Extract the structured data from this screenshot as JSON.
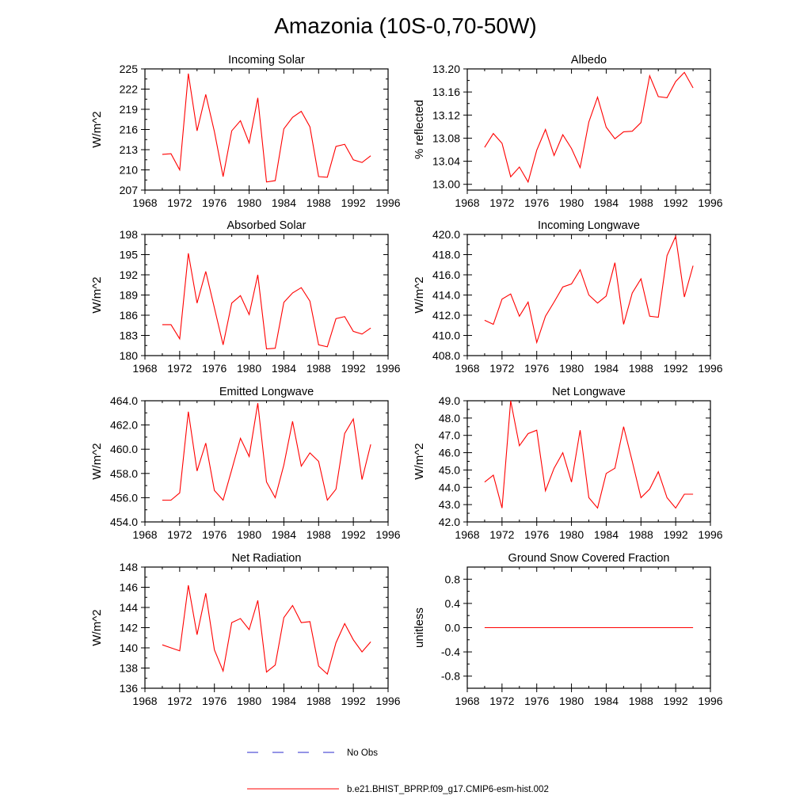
{
  "title": "Amazonia (10S-0,70-50W)",
  "colors": {
    "series": "#ff0000",
    "obs": "#2b2bcc",
    "axis": "#000000"
  },
  "legend": {
    "placement": "bottom-center",
    "entries": [
      {
        "label": "No Obs",
        "style": "dashed",
        "color": "#2b2bcc"
      },
      {
        "label": "b.e21.BHIST_BPRP.f09_g17.CMIP6-esm-hist.002",
        "style": "solid",
        "color": "#ff0000"
      }
    ]
  },
  "chart_data": [
    {
      "type": "line",
      "title": "Incoming Solar",
      "ylabel": "W/m^2",
      "xlim": [
        1968,
        1996
      ],
      "ylim": [
        207,
        225
      ],
      "xticks": [
        "1968",
        "1972",
        "1976",
        "1980",
        "1984",
        "1988",
        "1992",
        "1996"
      ],
      "yticks": [
        "207",
        "210",
        "213",
        "216",
        "219",
        "222",
        "225"
      ],
      "x": [
        1970,
        1971,
        1972,
        1973,
        1974,
        1975,
        1976,
        1977,
        1978,
        1979,
        1980,
        1981,
        1982,
        1983,
        1984,
        1985,
        1986,
        1987,
        1988,
        1989,
        1990,
        1991,
        1992,
        1993,
        1994
      ],
      "values": [
        212.3,
        212.4,
        210.0,
        224.3,
        215.8,
        221.2,
        215.7,
        209.0,
        215.8,
        217.3,
        214.0,
        220.7,
        208.2,
        208.4,
        216.1,
        217.8,
        218.7,
        216.4,
        209.0,
        208.9,
        213.5,
        213.8,
        211.5,
        211.1,
        212.1
      ]
    },
    {
      "type": "line",
      "title": "Albedo",
      "ylabel": "% reflected",
      "xlim": [
        1968,
        1996
      ],
      "ylim": [
        12.99,
        13.2
      ],
      "xticks": [
        "1968",
        "1972",
        "1976",
        "1980",
        "1984",
        "1988",
        "1992",
        "1996"
      ],
      "yticks": [
        "13.00",
        "13.04",
        "13.08",
        "13.12",
        "13.16",
        "13.20"
      ],
      "x": [
        1970,
        1971,
        1972,
        1973,
        1974,
        1975,
        1976,
        1977,
        1978,
        1979,
        1980,
        1981,
        1982,
        1983,
        1984,
        1985,
        1986,
        1987,
        1988,
        1989,
        1990,
        1991,
        1992,
        1993,
        1994
      ],
      "values": [
        13.064,
        13.088,
        13.071,
        13.013,
        13.03,
        13.004,
        13.059,
        13.095,
        13.05,
        13.086,
        13.062,
        13.029,
        13.108,
        13.151,
        13.099,
        13.079,
        13.091,
        13.092,
        13.107,
        13.188,
        13.152,
        13.15,
        13.178,
        13.194,
        13.167
      ]
    },
    {
      "type": "line",
      "title": "Absorbed Solar",
      "ylabel": "W/m^2",
      "xlim": [
        1968,
        1996
      ],
      "ylim": [
        180,
        198
      ],
      "xticks": [
        "1968",
        "1972",
        "1976",
        "1980",
        "1984",
        "1988",
        "1992",
        "1996"
      ],
      "yticks": [
        "180",
        "183",
        "186",
        "189",
        "192",
        "195",
        "198"
      ],
      "x": [
        1970,
        1971,
        1972,
        1973,
        1974,
        1975,
        1976,
        1977,
        1978,
        1979,
        1980,
        1981,
        1982,
        1983,
        1984,
        1985,
        1986,
        1987,
        1988,
        1989,
        1990,
        1991,
        1992,
        1993,
        1994
      ],
      "values": [
        184.6,
        184.6,
        182.5,
        195.2,
        187.8,
        192.5,
        187.1,
        181.6,
        187.8,
        188.9,
        186.1,
        192.0,
        181.0,
        181.1,
        187.9,
        189.3,
        190.1,
        188.1,
        181.6,
        181.3,
        185.5,
        185.8,
        183.6,
        183.2,
        184.1
      ]
    },
    {
      "type": "line",
      "title": "Incoming Longwave",
      "ylabel": "W/m^2",
      "xlim": [
        1968,
        1996
      ],
      "ylim": [
        408,
        420
      ],
      "xticks": [
        "1968",
        "1972",
        "1976",
        "1980",
        "1984",
        "1988",
        "1992",
        "1996"
      ],
      "yticks": [
        "408.0",
        "410.0",
        "412.0",
        "414.0",
        "416.0",
        "418.0",
        "420.0"
      ],
      "x": [
        1970,
        1971,
        1972,
        1973,
        1974,
        1975,
        1976,
        1977,
        1978,
        1979,
        1980,
        1981,
        1982,
        1983,
        1984,
        1985,
        1986,
        1987,
        1988,
        1989,
        1990,
        1991,
        1992,
        1993,
        1994
      ],
      "values": [
        411.5,
        411.1,
        413.6,
        414.1,
        411.9,
        413.3,
        409.3,
        411.9,
        413.3,
        414.8,
        415.1,
        416.5,
        414.0,
        413.2,
        413.9,
        417.2,
        411.1,
        414.2,
        415.6,
        411.9,
        411.8,
        417.9,
        419.8,
        413.8,
        416.9
      ]
    },
    {
      "type": "line",
      "title": "Emitted Longwave",
      "ylabel": "W/m^2",
      "xlim": [
        1968,
        1996
      ],
      "ylim": [
        454,
        464
      ],
      "xticks": [
        "1968",
        "1972",
        "1976",
        "1980",
        "1984",
        "1988",
        "1992",
        "1996"
      ],
      "yticks": [
        "454.0",
        "456.0",
        "458.0",
        "460.0",
        "462.0",
        "464.0"
      ],
      "x": [
        1970,
        1971,
        1972,
        1973,
        1974,
        1975,
        1976,
        1977,
        1978,
        1979,
        1980,
        1981,
        1982,
        1983,
        1984,
        1985,
        1986,
        1987,
        1988,
        1989,
        1990,
        1991,
        1992,
        1993,
        1994
      ],
      "values": [
        455.8,
        455.8,
        456.4,
        463.1,
        458.2,
        460.5,
        456.6,
        455.8,
        458.3,
        460.9,
        459.4,
        463.8,
        457.3,
        456.0,
        458.7,
        462.3,
        458.6,
        459.7,
        459.0,
        455.8,
        456.7,
        461.3,
        462.5,
        457.5,
        460.4
      ]
    },
    {
      "type": "line",
      "title": "Net Longwave",
      "ylabel": "W/m^2",
      "xlim": [
        1968,
        1996
      ],
      "ylim": [
        42,
        49
      ],
      "xticks": [
        "1968",
        "1972",
        "1976",
        "1980",
        "1984",
        "1988",
        "1992",
        "1996"
      ],
      "yticks": [
        "42.0",
        "43.0",
        "44.0",
        "45.0",
        "46.0",
        "47.0",
        "48.0",
        "49.0"
      ],
      "x": [
        1970,
        1971,
        1972,
        1973,
        1974,
        1975,
        1976,
        1977,
        1978,
        1979,
        1980,
        1981,
        1982,
        1983,
        1984,
        1985,
        1986,
        1987,
        1988,
        1989,
        1990,
        1991,
        1992,
        1993,
        1994
      ],
      "values": [
        44.3,
        44.7,
        42.8,
        49.0,
        46.4,
        47.1,
        47.3,
        43.8,
        45.1,
        46.0,
        44.3,
        47.3,
        43.4,
        42.8,
        44.8,
        45.1,
        47.5,
        45.5,
        43.4,
        43.9,
        44.9,
        43.4,
        42.8,
        43.6,
        43.6
      ]
    },
    {
      "type": "line",
      "title": "Net Radiation",
      "ylabel": "W/m^2",
      "xlim": [
        1968,
        1996
      ],
      "ylim": [
        136,
        148
      ],
      "xticks": [
        "1968",
        "1972",
        "1976",
        "1980",
        "1984",
        "1988",
        "1992",
        "1996"
      ],
      "yticks": [
        "136",
        "138",
        "140",
        "142",
        "144",
        "146",
        "148"
      ],
      "x": [
        1970,
        1971,
        1972,
        1973,
        1974,
        1975,
        1976,
        1977,
        1978,
        1979,
        1980,
        1981,
        1982,
        1983,
        1984,
        1985,
        1986,
        1987,
        1988,
        1989,
        1990,
        1991,
        1992,
        1993,
        1994
      ],
      "values": [
        140.3,
        140.0,
        139.7,
        146.2,
        141.3,
        145.4,
        139.8,
        137.7,
        142.5,
        142.9,
        141.8,
        144.7,
        137.6,
        138.3,
        143.0,
        144.2,
        142.5,
        142.6,
        138.2,
        137.4,
        140.5,
        142.4,
        140.8,
        139.6,
        140.6
      ]
    },
    {
      "type": "line",
      "title": "Ground Snow Covered Fraction",
      "ylabel": "unitless",
      "xlim": [
        1968,
        1996
      ],
      "ylim": [
        -1.0,
        1.0
      ],
      "xticks": [
        "1968",
        "1972",
        "1976",
        "1980",
        "1984",
        "1988",
        "1992",
        "1996"
      ],
      "yticks": [
        "-0.8",
        "-0.4",
        "0.0",
        "0.4",
        "0.8"
      ],
      "x": [
        1970,
        1971,
        1972,
        1973,
        1974,
        1975,
        1976,
        1977,
        1978,
        1979,
        1980,
        1981,
        1982,
        1983,
        1984,
        1985,
        1986,
        1987,
        1988,
        1989,
        1990,
        1991,
        1992,
        1993,
        1994
      ],
      "values": [
        0,
        0,
        0,
        0,
        0,
        0,
        0,
        0,
        0,
        0,
        0,
        0,
        0,
        0,
        0,
        0,
        0,
        0,
        0,
        0,
        0,
        0,
        0,
        0,
        0
      ]
    }
  ]
}
